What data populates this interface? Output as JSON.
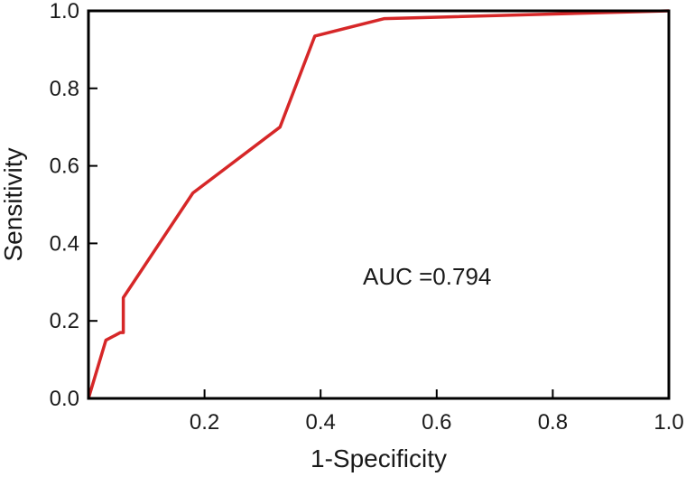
{
  "chart_data": {
    "type": "line",
    "xlabel": "1-Specificity",
    "ylabel": "Sensitivity",
    "xlim": [
      0,
      1
    ],
    "ylim": [
      0,
      1
    ],
    "xticks": [
      "0.2",
      "0.4",
      "0.6",
      "0.8",
      "1.0"
    ],
    "yticks": [
      "0.0",
      "0.2",
      "0.4",
      "0.6",
      "0.8",
      "1.0"
    ],
    "grid": false,
    "annotation": "AUC =0.794",
    "line_color": "#d62728",
    "series": [
      {
        "x": [
          0.0,
          0.03,
          0.055,
          0.06,
          0.06,
          0.18,
          0.33,
          0.39,
          0.51,
          1.0
        ],
        "y": [
          0.0,
          0.15,
          0.17,
          0.17,
          0.26,
          0.53,
          0.7,
          0.935,
          0.98,
          1.0
        ]
      }
    ]
  }
}
